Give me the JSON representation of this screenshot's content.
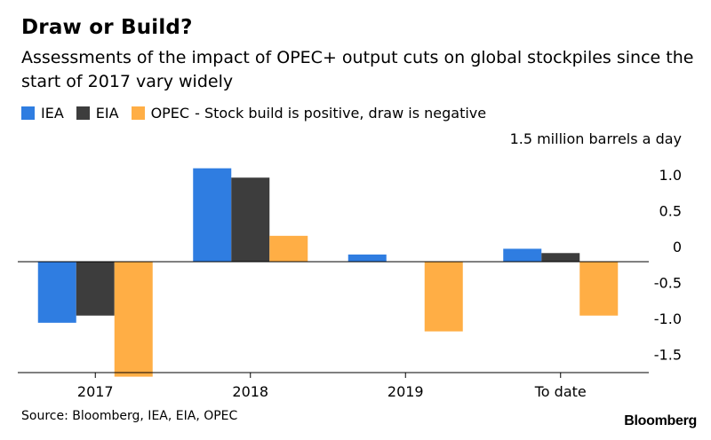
{
  "title": "Draw or Build?",
  "subtitle": "Assessments of the impact of OPEC+ output cuts on global stockpiles since the start of 2017 vary widely",
  "source": "Source: Bloomberg, IEA, EIA, OPEC",
  "brand": "Bloomberg",
  "legend_note": "- Stock build is positive, draw is negative",
  "chart_data": {
    "type": "bar",
    "categories": [
      "2017",
      "2018",
      "2019",
      "To date"
    ],
    "series": [
      {
        "name": "IEA",
        "color": "#2f7de1",
        "values": [
          -0.85,
          1.3,
          0.1,
          0.18
        ]
      },
      {
        "name": "EIA",
        "color": "#3d3d3d",
        "values": [
          -0.75,
          1.17,
          0.0,
          0.12
        ]
      },
      {
        "name": "OPEC",
        "color": "#ffae45",
        "values": [
          -1.6,
          0.36,
          -0.97,
          -0.75
        ]
      }
    ],
    "ylabel": "1.5 million barrels a day",
    "yticks": [
      1.0,
      0.5,
      0,
      -0.5,
      -1.0,
      -1.5
    ],
    "ytick_labels": [
      "1.0",
      "0.5",
      "0",
      "-0.5",
      "-1.0",
      "-1.5"
    ],
    "ylim": [
      -1.7,
      1.5
    ],
    "legend_position": "top-left"
  }
}
